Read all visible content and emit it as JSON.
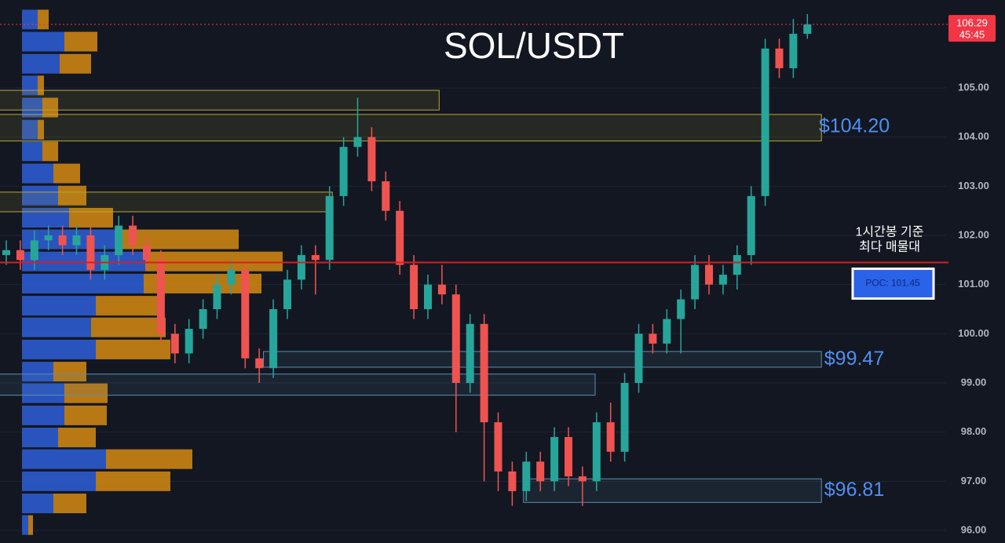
{
  "chart_data": {
    "type": "candlestick",
    "title": "SOL/USDT",
    "ylim": [
      95.745,
      106.787
    ],
    "yticks": [
      {
        "value": 96,
        "label": "96.00"
      },
      {
        "value": 97,
        "label": "97.00"
      },
      {
        "value": 98,
        "label": "98.00"
      },
      {
        "value": 99,
        "label": "99.00"
      },
      {
        "value": 100,
        "label": "100.00"
      },
      {
        "value": 101,
        "label": "101.00"
      },
      {
        "value": 102,
        "label": "102.00"
      },
      {
        "value": 103,
        "label": "103.00"
      },
      {
        "value": 104,
        "label": "104.00"
      },
      {
        "value": 105,
        "label": "105.00"
      }
    ],
    "grid": true,
    "up_color": "#26a69a",
    "down_color": "#ef5350",
    "open": [
      101.6,
      101.7,
      101.5,
      101.9,
      102.0,
      101.8,
      102.0,
      101.3,
      101.6,
      102.2,
      101.8,
      101.5,
      100.0,
      99.6,
      100.1,
      100.5,
      101.0,
      101.3,
      99.5,
      99.3,
      100.5,
      101.1,
      101.6,
      101.5,
      102.8,
      103.8,
      104.0,
      103.1,
      102.5,
      101.4,
      100.5,
      101.0,
      100.8,
      99.0,
      100.2,
      98.2,
      97.2,
      96.8,
      97.4,
      97.0,
      97.9,
      97.1,
      97.0,
      98.2,
      97.6,
      99.0,
      100.0,
      99.8,
      100.3,
      100.7,
      101.4,
      101.0,
      101.2,
      101.6,
      102.8,
      105.8,
      105.4,
      106.1
    ],
    "high": [
      101.9,
      101.9,
      102.1,
      102.2,
      102.2,
      102.2,
      102.2,
      101.8,
      102.4,
      102.4,
      102.0,
      101.7,
      100.2,
      100.3,
      100.7,
      101.2,
      101.5,
      101.5,
      99.7,
      100.7,
      101.3,
      101.8,
      101.8,
      103.0,
      104.0,
      104.8,
      104.2,
      103.3,
      102.7,
      101.6,
      101.2,
      101.4,
      101.0,
      100.4,
      100.4,
      98.4,
      97.4,
      97.6,
      97.6,
      98.1,
      98.1,
      97.3,
      98.4,
      98.6,
      99.2,
      100.2,
      100.2,
      100.5,
      100.9,
      101.6,
      101.6,
      101.4,
      101.8,
      103.0,
      106.0,
      106.0,
      106.4,
      106.5
    ],
    "low": [
      101.4,
      101.3,
      101.3,
      101.7,
      101.6,
      101.6,
      101.1,
      101.1,
      101.4,
      101.6,
      101.3,
      99.8,
      99.4,
      99.4,
      99.9,
      100.3,
      100.8,
      99.3,
      99.0,
      99.1,
      100.3,
      100.9,
      100.8,
      101.3,
      102.6,
      103.6,
      102.9,
      102.3,
      101.2,
      100.3,
      100.3,
      100.6,
      98.0,
      98.8,
      97.0,
      96.8,
      96.5,
      96.6,
      96.8,
      96.8,
      96.9,
      96.5,
      96.8,
      97.4,
      97.4,
      98.8,
      99.6,
      99.6,
      99.6,
      100.5,
      100.8,
      100.8,
      100.9,
      101.4,
      102.6,
      105.2,
      105.2,
      106.0
    ],
    "close": [
      101.7,
      101.5,
      101.9,
      102.0,
      101.8,
      102.0,
      101.3,
      101.6,
      102.2,
      101.8,
      101.5,
      100.0,
      99.6,
      100.1,
      100.5,
      101.0,
      101.3,
      99.5,
      99.3,
      100.5,
      101.1,
      101.6,
      101.5,
      102.8,
      103.8,
      104.0,
      103.1,
      102.5,
      101.4,
      100.5,
      101.0,
      100.8,
      99.0,
      100.2,
      98.2,
      97.2,
      96.8,
      97.4,
      97.0,
      97.9,
      97.1,
      97.0,
      98.2,
      97.6,
      99.0,
      100.0,
      99.8,
      100.3,
      100.7,
      101.4,
      101.0,
      101.2,
      101.6,
      102.8,
      105.8,
      105.4,
      106.1,
      106.29
    ],
    "volume_profile": {
      "levels": [
        106.39,
        105.94,
        105.49,
        105.05,
        104.6,
        104.15,
        103.71,
        103.26,
        102.81,
        102.36,
        101.92,
        101.47,
        101.02,
        100.57,
        100.13,
        99.68,
        99.23,
        98.79,
        98.34,
        97.89,
        97.45,
        97.0,
        96.55,
        96.11
      ],
      "buy": [
        20,
        54,
        48,
        20,
        26,
        20,
        26,
        40,
        46,
        60,
        120,
        157,
        155,
        94,
        88,
        94,
        40,
        54,
        54,
        46,
        107,
        94,
        40,
        8
      ],
      "sell": [
        14,
        42,
        40,
        8,
        20,
        8,
        20,
        34,
        36,
        56,
        156,
        175,
        150,
        87,
        95,
        95,
        42,
        55,
        54,
        48,
        110,
        95,
        42,
        6
      ],
      "buy_color": "#2f5fd8",
      "sell_color": "#d68a12"
    },
    "zones": [
      {
        "range": [
          104.55,
          104.95
        ],
        "start": -1,
        "end": 30.8,
        "color": "#b8a634"
      },
      {
        "range": [
          103.92,
          104.46
        ],
        "start": -1,
        "end": 58,
        "color": "#b8a634"
      },
      {
        "range": [
          102.48,
          102.88
        ],
        "start": -1,
        "end": 23.2,
        "color": "#b8a634"
      },
      {
        "range": [
          99.32,
          99.64
        ],
        "start": 18.3,
        "end": 58,
        "color": "#5b8fb0"
      },
      {
        "range": [
          98.75,
          99.18
        ],
        "start": -1,
        "end": 41.9,
        "color": "#5b8fb0"
      },
      {
        "range": [
          96.57,
          97.05
        ],
        "start": 36.8,
        "end": 58,
        "color": "#5b8fb0"
      }
    ],
    "level_labels": [
      {
        "value": 104.2,
        "label": "$104.20"
      },
      {
        "value": 99.47,
        "label": "$99.47"
      },
      {
        "value": 96.81,
        "label": "$96.81"
      }
    ],
    "poc": {
      "value": 101.45,
      "label": "POC: 101.45",
      "color": "#e31a1a"
    },
    "poc_note": [
      "1시간봉 기준",
      "최다 매물대"
    ],
    "last_price": {
      "value": 106.29,
      "label": "106.29",
      "countdown": "45:45",
      "color": "#f23645"
    }
  }
}
